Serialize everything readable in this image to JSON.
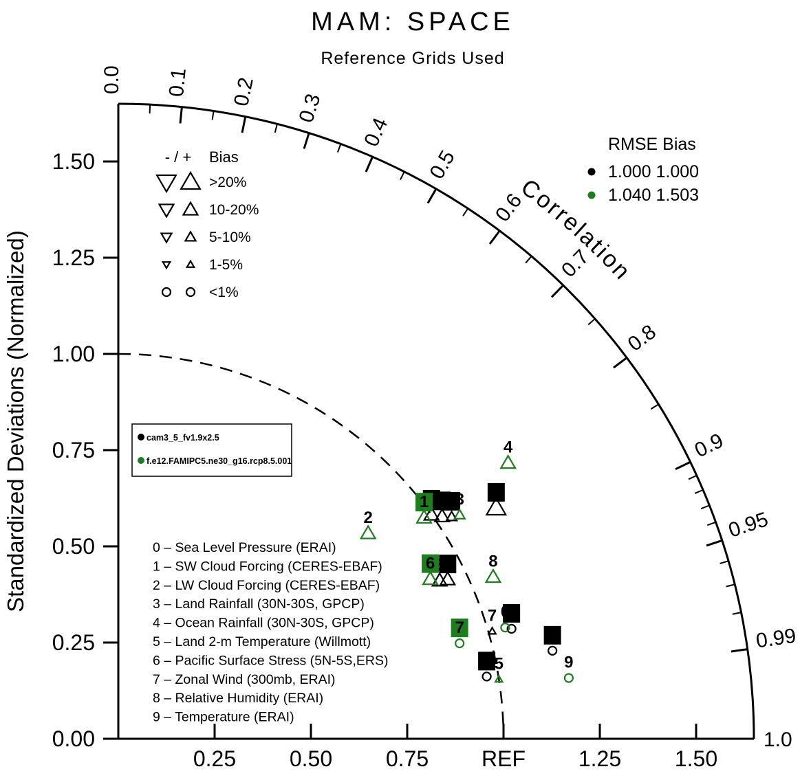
{
  "title": "MAM: SPACE",
  "subtitle": "Reference Grids Used",
  "y_axis_label": "Standardized Deviations (Normalized)",
  "correlation_label": "Correlation",
  "cases": [
    {
      "name": "cam3_5_fv1.9x2.5",
      "color": "#000000"
    },
    {
      "name": "f.e12.FAMIPC5.ne30_g16.rcp8.5.001",
      "color": "#1f7d1f"
    }
  ],
  "axis": {
    "r_max": 1.65,
    "ref_radius": 1.0,
    "y_ticks": [
      {
        "v": 0,
        "label": "0.00"
      },
      {
        "v": 0.25,
        "label": "0.25"
      },
      {
        "v": 0.5,
        "label": "0.50"
      },
      {
        "v": 0.75,
        "label": "0.75"
      },
      {
        "v": 1,
        "label": "1.00"
      },
      {
        "v": 1.25,
        "label": "1.25"
      },
      {
        "v": 1.5,
        "label": "1.50"
      }
    ],
    "x_ticks": [
      {
        "v": 0.25,
        "label": "0.25"
      },
      {
        "v": 0.5,
        "label": "0.50"
      },
      {
        "v": 0.75,
        "label": "0.75"
      },
      {
        "v": 1,
        "label": "REF"
      },
      {
        "v": 1.25,
        "label": "1.25"
      },
      {
        "v": 1.5,
        "label": "1.50"
      }
    ],
    "corr_major": [
      {
        "v": 0,
        "label": "0.0"
      },
      {
        "v": 0.1,
        "label": "0.1"
      },
      {
        "v": 0.2,
        "label": "0.2"
      },
      {
        "v": 0.3,
        "label": "0.3"
      },
      {
        "v": 0.4,
        "label": "0.4"
      },
      {
        "v": 0.5,
        "label": "0.5"
      },
      {
        "v": 0.6,
        "label": "0.6"
      },
      {
        "v": 0.7,
        "label": "0.7"
      },
      {
        "v": 0.8,
        "label": "0.8"
      },
      {
        "v": 0.9,
        "label": "0.9"
      },
      {
        "v": 0.95,
        "label": "0.95"
      },
      {
        "v": 0.99,
        "label": "0.99"
      }
    ],
    "corr_minor": [
      0.05,
      0.15,
      0.25,
      0.35,
      0.45,
      0.55,
      0.65,
      0.75,
      0.85,
      0.91,
      0.92,
      0.93,
      0.94,
      0.96,
      0.97,
      0.98
    ],
    "corr_end": {
      "v": 1,
      "label": "1.0"
    }
  },
  "bias_legend": {
    "header": "- / +",
    "header_label": "Bias",
    "rows": [
      {
        "label": ">20%",
        "size": 24
      },
      {
        "label": "10-20%",
        "size": 18
      },
      {
        "label": "5-10%",
        "size": 13
      },
      {
        "label": "1-5%",
        "size": 9
      },
      {
        "label": "<1%",
        "size": 0
      }
    ]
  },
  "rmse_legend": {
    "header": "RMSE  Bias",
    "rows": [
      {
        "case": 0,
        "text": "1.000 1.000"
      },
      {
        "case": 1,
        "text": "1.040 1.503"
      }
    ]
  },
  "variables": [
    "0 – Sea Level Pressure (ERAI)",
    "1 – SW Cloud Forcing (CERES-EBAF)",
    "2 – LW Cloud Forcing (CERES-EBAF)",
    "3 – Land Rainfall (30N-30S, GPCP)",
    "4 – Ocean Rainfall (30N-30S, GPCP)",
    "5 – Land 2-m Temperature (Willmott)",
    "6 – Pacific Surface Stress (5N-5S,ERS)",
    "7 – Zonal Wind (300mb, ERAI)",
    "8 – Relative Humidity (ERAI)",
    "9 – Temperature (ERAI)"
  ],
  "chart_data": {
    "type": "scatter",
    "plot": "taylor-diagram",
    "title": "MAM: SPACE",
    "subtitle": "Reference Grids Used",
    "radial_axis": "Standardized Deviations (Normalized)",
    "angular_axis": "Correlation",
    "radial_range": [
      0,
      1.65
    ],
    "series_names": [
      "cam3_5_fv1.9x2.5",
      "f.e12.FAMIPC5.ne30_g16.rcp8.5.001"
    ],
    "points": [
      {
        "var": 0,
        "case": 0,
        "std": 1.06,
        "corr": 0.963,
        "bias": "<1%",
        "boxed": true
      },
      {
        "var": 1,
        "case": 0,
        "std": 1.0,
        "corr": 0.813,
        "bias": "10-20%",
        "boxed": true
      },
      {
        "var": 2,
        "case": 0,
        "std": 1.02,
        "corr": 0.824,
        "bias": "10-20%",
        "boxed": true
      },
      {
        "var": 3,
        "case": 0,
        "std": 1.04,
        "corr": 0.832,
        "bias": "5-10%",
        "boxed": true
      },
      {
        "var": 4,
        "case": 0,
        "std": 1.15,
        "corr": 0.853,
        "bias": ">20%",
        "boxed": true
      },
      {
        "var": 5,
        "case": 0,
        "std": 0.97,
        "corr": 0.986,
        "bias": "<1%",
        "boxed": true
      },
      {
        "var": 6,
        "case": 0,
        "std": 0.93,
        "corr": 0.897,
        "bias": "10-20%",
        "boxed": false
      },
      {
        "var": 7,
        "case": 0,
        "std": 1.01,
        "corr": 0.961,
        "bias": "1-5%",
        "boxed": false
      },
      {
        "var": 8,
        "case": 0,
        "std": 0.95,
        "corr": 0.9,
        "bias": "10-20%",
        "boxed": true
      },
      {
        "var": 9,
        "case": 0,
        "std": 1.15,
        "corr": 0.98,
        "bias": "<1%",
        "boxed": true
      },
      {
        "var": 0,
        "case": 1,
        "std": 1.045,
        "corr": 0.961,
        "bias": "<1%",
        "boxed": false
      },
      {
        "var": 1,
        "case": 1,
        "std": 0.98,
        "corr": 0.81,
        "bias": "10-20%",
        "boxed": true
      },
      {
        "var": 2,
        "case": 1,
        "std": 0.84,
        "corr": 0.772,
        "bias": "10-20%",
        "boxed": false
      },
      {
        "var": 3,
        "case": 1,
        "std": 1.06,
        "corr": 0.836,
        "bias": "5-10%",
        "boxed": false
      },
      {
        "var": 4,
        "case": 1,
        "std": 1.24,
        "corr": 0.816,
        "bias": "10-20%",
        "boxed": false
      },
      {
        "var": 5,
        "case": 1,
        "std": 1.0,
        "corr": 0.988,
        "bias": "1-5%",
        "boxed": false
      },
      {
        "var": 6,
        "case": 1,
        "std": 0.91,
        "corr": 0.89,
        "bias": "10-20%",
        "boxed": true
      },
      {
        "var": 7,
        "case": 1,
        "std": 0.92,
        "corr": 0.963,
        "bias": "<1%",
        "boxed": true
      },
      {
        "var": 8,
        "case": 1,
        "std": 1.06,
        "corr": 0.918,
        "bias": "10-20%",
        "boxed": false
      },
      {
        "var": 9,
        "case": 1,
        "std": 1.18,
        "corr": 0.991,
        "bias": "<1%",
        "boxed": false
      }
    ]
  }
}
